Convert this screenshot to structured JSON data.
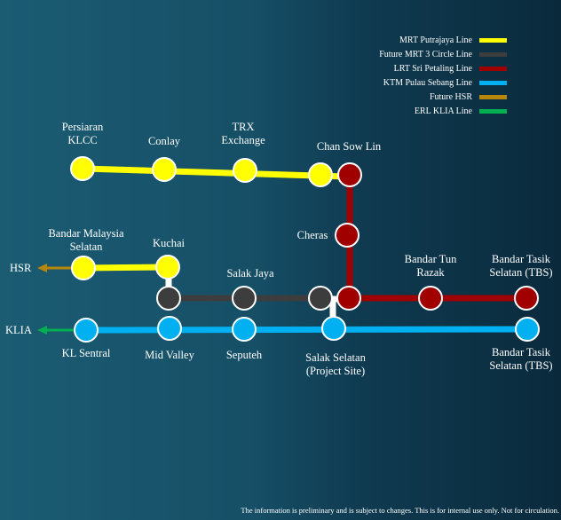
{
  "legend": [
    {
      "label": "MRT Putrajaya Line",
      "color": "#ffff00"
    },
    {
      "label": "Future MRT 3 Circle Line",
      "color": "#3d3d3d"
    },
    {
      "label": "LRT Sri Petaling Line",
      "color": "#a00000"
    },
    {
      "label": "KTM Pulau Sebang Line",
      "color": "#00b0f0"
    },
    {
      "label": "Future HSR",
      "color": "#b8860b"
    },
    {
      "label": "ERL KLIA Line",
      "color": "#00b050"
    }
  ],
  "directions": {
    "hsr": "HSR",
    "klia": "KLIA"
  },
  "stations": {
    "persiaran_klcc": [
      "Persiaran",
      "KLCC"
    ],
    "conlay": [
      "Conlay"
    ],
    "trx_exchange": [
      "TRX",
      "Exchange"
    ],
    "chan_sow_lin": [
      "Chan Sow Lin"
    ],
    "cheras": [
      "Cheras"
    ],
    "bandar_malaysia_selatan": [
      "Bandar Malaysia",
      "Selatan"
    ],
    "kuchai": [
      "Kuchai"
    ],
    "salak_jaya": [
      "Salak Jaya"
    ],
    "bandar_tun_razak": [
      "Bandar Tun",
      "Razak"
    ],
    "bandar_tasik_selatan_lrt": [
      "Bandar Tasik",
      "Selatan (TBS)"
    ],
    "kl_sentral": [
      "KL Sentral"
    ],
    "mid_valley": [
      "Mid Valley"
    ],
    "seputeh": [
      "Seputeh"
    ],
    "salak_selatan": [
      "Salak Selatan",
      "(Project Site)"
    ],
    "bandar_tasik_selatan_ktm": [
      "Bandar Tasik",
      "Selatan (TBS)"
    ]
  },
  "colors": {
    "mrt_putrajaya": "#ffff00",
    "mrt3_circle": "#3d3d3d",
    "lrt_sri_petaling": "#a00000",
    "ktm": "#00b0f0",
    "hsr": "#b8860b",
    "erl": "#00b050"
  },
  "footnote": "The information is preliminary and is subject to changes. This is for internal use only. Not for circulation."
}
